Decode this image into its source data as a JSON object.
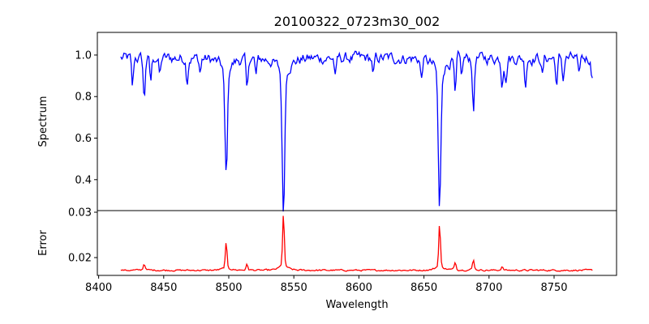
{
  "chart_data": {
    "type": "line",
    "title": "20100322_0723m30_002",
    "xlabel": "Wavelength",
    "xlim": [
      8399,
      8798
    ],
    "xticks": [
      8400,
      8450,
      8500,
      8550,
      8600,
      8650,
      8700,
      8750
    ],
    "x_range_of_data": [
      8417,
      8780
    ],
    "panels": [
      {
        "name": "Spectrum",
        "ylabel": "Spectrum",
        "color": "#0000ff",
        "ylim": [
          0.251,
          1.109
        ],
        "yticks": [
          0.4,
          0.6,
          0.8,
          1.0
        ],
        "ytick_labels": [
          "0.4",
          "0.6",
          "0.8",
          "1.0"
        ],
        "continuum": 0.985,
        "absorption_lines": [
          {
            "center": 8426,
            "min": 0.84
          },
          {
            "center": 8435,
            "min": 0.78
          },
          {
            "center": 8440,
            "min": 0.87
          },
          {
            "center": 8447,
            "min": 0.9
          },
          {
            "center": 8468,
            "min": 0.88
          },
          {
            "center": 8478,
            "min": 0.92
          },
          {
            "center": 8498,
            "min": 0.49
          },
          {
            "center": 8514,
            "min": 0.82
          },
          {
            "center": 8521,
            "min": 0.9
          },
          {
            "center": 8542,
            "min": 0.33
          },
          {
            "center": 8582,
            "min": 0.89
          },
          {
            "center": 8611,
            "min": 0.89
          },
          {
            "center": 8648,
            "min": 0.89
          },
          {
            "center": 8662,
            "min": 0.34
          },
          {
            "center": 8674,
            "min": 0.8
          },
          {
            "center": 8679,
            "min": 0.9
          },
          {
            "center": 8688,
            "min": 0.72
          },
          {
            "center": 8710,
            "min": 0.87
          },
          {
            "center": 8713,
            "min": 0.87
          },
          {
            "center": 8728,
            "min": 0.86
          },
          {
            "center": 8741,
            "min": 0.9
          },
          {
            "center": 8752,
            "min": 0.84
          },
          {
            "center": 8757,
            "min": 0.88
          },
          {
            "center": 8769,
            "min": 0.88
          },
          {
            "center": 8779,
            "min": 0.91
          }
        ]
      },
      {
        "name": "Error",
        "ylabel": "Error",
        "color": "#ff0000",
        "ylim": [
          0.01607,
          0.03036
        ],
        "yticks": [
          0.02,
          0.03
        ],
        "ytick_labels": [
          "0.02",
          "0.03"
        ],
        "baseline": 0.0172,
        "peaks": [
          {
            "center": 8435,
            "max": 0.0187
          },
          {
            "center": 8498,
            "max": 0.0233
          },
          {
            "center": 8514,
            "max": 0.0185
          },
          {
            "center": 8542,
            "max": 0.0298
          },
          {
            "center": 8662,
            "max": 0.0275
          },
          {
            "center": 8674,
            "max": 0.019
          },
          {
            "center": 8688,
            "max": 0.0195
          },
          {
            "center": 8710,
            "max": 0.018
          }
        ]
      }
    ]
  }
}
